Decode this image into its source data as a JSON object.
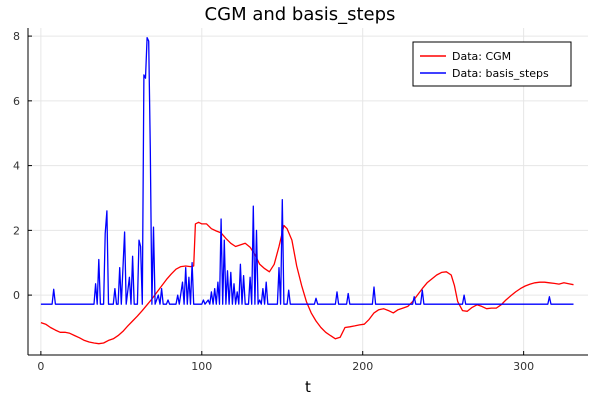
{
  "chart_data": {
    "type": "line",
    "title": "CGM and basis_steps",
    "xlabel": "t",
    "ylabel": "",
    "xlim": [
      -8,
      340
    ],
    "ylim": [
      -1.85,
      8.25
    ],
    "xticks": [
      0,
      100,
      200,
      300
    ],
    "yticks": [
      0,
      2,
      4,
      6,
      8
    ],
    "grid": true,
    "legend_position": "top-right",
    "series": [
      {
        "name": "Data: CGM",
        "color": "#ff0000",
        "points": [
          [
            0,
            -0.85
          ],
          [
            3,
            -0.9
          ],
          [
            6,
            -1.0
          ],
          [
            9,
            -1.08
          ],
          [
            12,
            -1.15
          ],
          [
            15,
            -1.15
          ],
          [
            18,
            -1.18
          ],
          [
            21,
            -1.25
          ],
          [
            24,
            -1.32
          ],
          [
            27,
            -1.4
          ],
          [
            30,
            -1.45
          ],
          [
            33,
            -1.48
          ],
          [
            36,
            -1.5
          ],
          [
            39,
            -1.48
          ],
          [
            42,
            -1.4
          ],
          [
            45,
            -1.35
          ],
          [
            48,
            -1.25
          ],
          [
            51,
            -1.12
          ],
          [
            54,
            -0.95
          ],
          [
            57,
            -0.8
          ],
          [
            60,
            -0.65
          ],
          [
            63,
            -0.48
          ],
          [
            66,
            -0.3
          ],
          [
            69,
            -0.12
          ],
          [
            72,
            0.08
          ],
          [
            75,
            0.28
          ],
          [
            78,
            0.48
          ],
          [
            81,
            0.65
          ],
          [
            84,
            0.8
          ],
          [
            87,
            0.88
          ],
          [
            90,
            0.9
          ],
          [
            93,
            0.88
          ],
          [
            95,
            0.9
          ],
          [
            96,
            2.2
          ],
          [
            98,
            2.25
          ],
          [
            100,
            2.2
          ],
          [
            103,
            2.2
          ],
          [
            106,
            2.05
          ],
          [
            109,
            1.98
          ],
          [
            112,
            1.92
          ],
          [
            115,
            1.75
          ],
          [
            118,
            1.6
          ],
          [
            121,
            1.5
          ],
          [
            124,
            1.55
          ],
          [
            127,
            1.6
          ],
          [
            130,
            1.48
          ],
          [
            133,
            1.25
          ],
          [
            136,
            0.95
          ],
          [
            139,
            0.82
          ],
          [
            142,
            0.72
          ],
          [
            145,
            0.95
          ],
          [
            148,
            1.5
          ],
          [
            151,
            2.15
          ],
          [
            153,
            2.05
          ],
          [
            156,
            1.7
          ],
          [
            159,
            0.9
          ],
          [
            162,
            0.3
          ],
          [
            165,
            -0.2
          ],
          [
            168,
            -0.55
          ],
          [
            171,
            -0.8
          ],
          [
            174,
            -1.0
          ],
          [
            177,
            -1.15
          ],
          [
            180,
            -1.25
          ],
          [
            183,
            -1.35
          ],
          [
            186,
            -1.3
          ],
          [
            189,
            -1.0
          ],
          [
            192,
            -0.98
          ],
          [
            195,
            -0.95
          ],
          [
            198,
            -0.92
          ],
          [
            201,
            -0.9
          ],
          [
            204,
            -0.75
          ],
          [
            207,
            -0.55
          ],
          [
            210,
            -0.45
          ],
          [
            213,
            -0.42
          ],
          [
            216,
            -0.48
          ],
          [
            219,
            -0.55
          ],
          [
            222,
            -0.45
          ],
          [
            225,
            -0.4
          ],
          [
            228,
            -0.35
          ],
          [
            231,
            -0.2
          ],
          [
            234,
            0.0
          ],
          [
            237,
            0.2
          ],
          [
            240,
            0.38
          ],
          [
            243,
            0.5
          ],
          [
            246,
            0.62
          ],
          [
            249,
            0.7
          ],
          [
            252,
            0.72
          ],
          [
            255,
            0.62
          ],
          [
            257,
            0.3
          ],
          [
            259,
            -0.2
          ],
          [
            262,
            -0.48
          ],
          [
            265,
            -0.5
          ],
          [
            268,
            -0.38
          ],
          [
            271,
            -0.3
          ],
          [
            274,
            -0.35
          ],
          [
            277,
            -0.42
          ],
          [
            280,
            -0.4
          ],
          [
            283,
            -0.4
          ],
          [
            286,
            -0.3
          ],
          [
            289,
            -0.15
          ],
          [
            292,
            -0.02
          ],
          [
            295,
            0.1
          ],
          [
            298,
            0.2
          ],
          [
            301,
            0.28
          ],
          [
            304,
            0.34
          ],
          [
            307,
            0.38
          ],
          [
            310,
            0.4
          ],
          [
            313,
            0.4
          ],
          [
            316,
            0.38
          ],
          [
            319,
            0.36
          ],
          [
            322,
            0.34
          ],
          [
            325,
            0.38
          ],
          [
            328,
            0.35
          ],
          [
            331,
            0.32
          ]
        ]
      },
      {
        "name": "Data: basis_steps",
        "color": "#0000ff",
        "points": [
          [
            0,
            -0.28
          ],
          [
            7,
            -0.28
          ],
          [
            8,
            0.18
          ],
          [
            9,
            -0.28
          ],
          [
            33,
            -0.28
          ],
          [
            34,
            0.35
          ],
          [
            35,
            -0.28
          ],
          [
            36,
            1.1
          ],
          [
            37,
            -0.28
          ],
          [
            39,
            -0.28
          ],
          [
            40,
            1.9
          ],
          [
            41,
            2.6
          ],
          [
            42,
            -0.28
          ],
          [
            45,
            -0.28
          ],
          [
            46,
            0.2
          ],
          [
            47,
            -0.28
          ],
          [
            48,
            -0.28
          ],
          [
            49,
            0.85
          ],
          [
            50,
            -0.28
          ],
          [
            52,
            1.95
          ],
          [
            53,
            -0.28
          ],
          [
            55,
            0.55
          ],
          [
            56,
            -0.28
          ],
          [
            57,
            1.2
          ],
          [
            58,
            -0.28
          ],
          [
            60,
            -0.28
          ],
          [
            61,
            1.7
          ],
          [
            62,
            1.5
          ],
          [
            63,
            -0.28
          ],
          [
            64,
            6.8
          ],
          [
            65,
            6.7
          ],
          [
            66,
            7.95
          ],
          [
            67,
            7.85
          ],
          [
            68,
            4.5
          ],
          [
            69,
            -0.28
          ],
          [
            70,
            2.1
          ],
          [
            71,
            -0.28
          ],
          [
            73,
            0.0
          ],
          [
            74,
            -0.28
          ],
          [
            75,
            0.2
          ],
          [
            76,
            -0.28
          ],
          [
            78,
            -0.28
          ],
          [
            79,
            -0.15
          ],
          [
            80,
            -0.28
          ],
          [
            84,
            -0.28
          ],
          [
            85,
            0.0
          ],
          [
            86,
            -0.28
          ],
          [
            88,
            0.4
          ],
          [
            89,
            -0.28
          ],
          [
            90,
            0.85
          ],
          [
            91,
            -0.28
          ],
          [
            92,
            0.55
          ],
          [
            93,
            -0.28
          ],
          [
            94,
            1.0
          ],
          [
            95,
            -0.28
          ],
          [
            100,
            -0.28
          ],
          [
            101,
            -0.15
          ],
          [
            102,
            -0.28
          ],
          [
            104,
            -0.15
          ],
          [
            105,
            -0.28
          ],
          [
            106,
            0.1
          ],
          [
            107,
            -0.28
          ],
          [
            108,
            0.2
          ],
          [
            109,
            -0.28
          ],
          [
            110,
            0.4
          ],
          [
            111,
            -0.28
          ],
          [
            112,
            2.35
          ],
          [
            113,
            -0.28
          ],
          [
            114,
            1.7
          ],
          [
            115,
            -0.28
          ],
          [
            116,
            0.75
          ],
          [
            117,
            -0.28
          ],
          [
            118,
            0.7
          ],
          [
            119,
            -0.28
          ],
          [
            120,
            0.35
          ],
          [
            121,
            -0.28
          ],
          [
            122,
            0.1
          ],
          [
            123,
            -0.28
          ],
          [
            124,
            0.95
          ],
          [
            125,
            -0.28
          ],
          [
            126,
            0.6
          ],
          [
            127,
            -0.28
          ],
          [
            129,
            -0.28
          ],
          [
            130,
            0.55
          ],
          [
            131,
            -0.28
          ],
          [
            132,
            2.75
          ],
          [
            133,
            -0.28
          ],
          [
            134,
            2.0
          ],
          [
            135,
            -0.28
          ],
          [
            136,
            -0.15
          ],
          [
            137,
            -0.28
          ],
          [
            138,
            0.2
          ],
          [
            139,
            -0.28
          ],
          [
            140,
            0.4
          ],
          [
            141,
            -0.28
          ],
          [
            147,
            -0.28
          ],
          [
            148,
            0.85
          ],
          [
            149,
            -0.28
          ],
          [
            150,
            2.95
          ],
          [
            151,
            -0.28
          ],
          [
            153,
            -0.28
          ],
          [
            154,
            0.15
          ],
          [
            155,
            -0.28
          ],
          [
            170,
            -0.28
          ],
          [
            171,
            -0.1
          ],
          [
            172,
            -0.28
          ],
          [
            183,
            -0.28
          ],
          [
            184,
            0.1
          ],
          [
            185,
            -0.28
          ],
          [
            190,
            -0.28
          ],
          [
            191,
            0.05
          ],
          [
            192,
            -0.28
          ],
          [
            206,
            -0.28
          ],
          [
            207,
            0.25
          ],
          [
            208,
            -0.28
          ],
          [
            231,
            -0.28
          ],
          [
            232,
            -0.05
          ],
          [
            233,
            -0.28
          ],
          [
            236,
            -0.28
          ],
          [
            237,
            0.15
          ],
          [
            238,
            -0.28
          ],
          [
            262,
            -0.28
          ],
          [
            263,
            0.0
          ],
          [
            264,
            -0.28
          ],
          [
            315,
            -0.28
          ],
          [
            316,
            -0.05
          ],
          [
            317,
            -0.28
          ],
          [
            331,
            -0.28
          ]
        ]
      }
    ]
  }
}
